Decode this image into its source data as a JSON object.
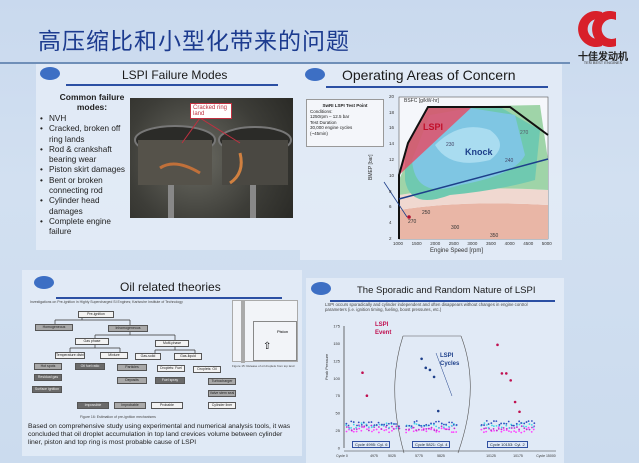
{
  "slide": {
    "title": "高压缩比和小型化带来的问题"
  },
  "logo": {
    "name_cn": "十佳发动机",
    "name_en": "TEN BEST ENGINES",
    "color": "#d8202a"
  },
  "panel_failure": {
    "title": "LSPI Failure Modes",
    "heading": "Common failure modes:",
    "items": [
      "NVH",
      "Cracked, broken off ring lands",
      "Rod & crankshaft bearing wear",
      "Piston skirt damages",
      "Bent or broken connecting rod",
      "Cylinder head damages",
      "Complete engine failure"
    ],
    "photo_label": "Cracked ring land"
  },
  "panel_operating": {
    "title": "Operating Areas of Concern",
    "test_point": {
      "title": "SwRI LSPI Test Point",
      "l1": "Conditions:",
      "l2": "1250rpm – 12.5 bar",
      "l3": "Test Duration",
      "l4": "30,000 engine cycles",
      "l5": "(~45min)"
    },
    "chart_data": {
      "type": "contour",
      "title": "BSFC [g/kW-hr]",
      "xlabel": "Engine Speed [rpm]",
      "ylabel": "BMEP [bar]",
      "xlim": [
        1000,
        5000
      ],
      "ylim": [
        2,
        20
      ],
      "xticks": [
        "1000",
        "1500",
        "2000",
        "2500",
        "3000",
        "3500",
        "4000",
        "4500",
        "5000"
      ],
      "yticks": [
        "2",
        "4",
        "6",
        "8",
        "10",
        "12",
        "14",
        "16",
        "18",
        "20"
      ],
      "contour_labels": [
        "230",
        "240",
        "250",
        "270",
        "270",
        "300",
        "350"
      ],
      "regions": {
        "lspi": "LSPI",
        "knock": "Knock"
      },
      "test_point": {
        "x": 1250,
        "y": 12.5
      },
      "colors": {
        "lspi": "#e2506a",
        "knock_line": "#1d3f8a"
      }
    }
  },
  "panel_oil": {
    "title": "Oil related theories",
    "citation": "Investigations on Pre-ignition in Highly Supercharged SI Engines; Karlsruhe Institute of Technology",
    "nodes": [
      "Pre-ignition",
      "Homogeneous",
      "Inhomogeneous",
      "Gas phase",
      "Multi-phase",
      "Temperature distribution",
      "Mixture",
      "Gas-solid",
      "Gas-liquid",
      "Hot spots",
      "Oil fuel ratio",
      "Particles",
      "Droplets: Fuel",
      "Droplets: Oil",
      "Residual gas",
      "Deposits",
      "Fuel spray",
      "Turbocharger",
      "Surface ignition",
      "Valve stem seal",
      "Cylinder liner"
    ],
    "legend": [
      "Impossible",
      "Improbable",
      "Probable"
    ],
    "figure_caption": "Figure 16: Estimation of pre-ignition mechanisms",
    "side_caption": "Figure 15: Release of oil droplets from top land",
    "side_labels": [
      "Piston"
    ],
    "conclusion": "Based on comprehensive study using experimental and numerical analysis tools, it was concluded that oil droplet accumulation in top land crevices volume between cylinder liner, piston and top ring is most probable cause of LSPI"
  },
  "panel_sporadic": {
    "title": "The Sporadic and Random Nature of LSPI",
    "bullet": "LSPI occurs sporadically and cylinder independent and often disappears without changes in engine control parameters (i.e. ignition timing, fueling, boost pressures, etc.)",
    "chart_data": {
      "type": "scatter",
      "ylabel": "Peak Pressure",
      "ylim": [
        0,
        175
      ],
      "yticks": [
        "0",
        "25",
        "50",
        "75",
        "100",
        "125",
        "150",
        "175"
      ],
      "xticks": [
        "Cycle 0",
        "4975",
        "5025",
        "5775",
        "5825",
        "10125",
        "10175",
        "Cycle 15000"
      ],
      "annotations": [
        "LSPI Event",
        "LSPI Cycles"
      ],
      "segments": [
        {
          "label": "Cycle 4995: Cyl. 6",
          "spikes": [
            108,
            75
          ]
        },
        {
          "label": "Cycle 5821: Cyl. 4",
          "spikes": [
            128,
            115,
            112,
            102,
            53
          ]
        },
        {
          "label": "Cycle 10153: Cyl. 2",
          "spikes": [
            148,
            107,
            107,
            97,
            66,
            52
          ]
        }
      ]
    }
  }
}
